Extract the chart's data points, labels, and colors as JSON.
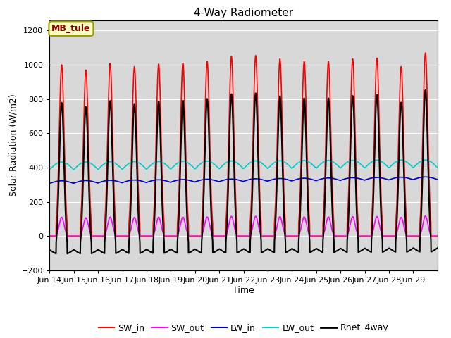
{
  "title": "4-Way Radiometer",
  "xlabel": "Time",
  "ylabel": "Solar Radiation (W/m2)",
  "ylim": [
    -200,
    1260
  ],
  "yticks": [
    -200,
    0,
    200,
    400,
    600,
    800,
    1000,
    1200
  ],
  "station_label": "MB_tule",
  "colors": {
    "SW_in": "#ff0000",
    "SW_out": "#ff00ff",
    "LW_in": "#0000cc",
    "LW_out": "#00cccc",
    "Rnet_4way": "#000000"
  },
  "line_widths": {
    "SW_in": 1.2,
    "SW_out": 1.2,
    "LW_in": 1.2,
    "LW_out": 1.2,
    "Rnet_4way": 1.5
  },
  "n_days": 16,
  "background_color": "#d8d8d8",
  "xtick_labels": [
    "Jun 14",
    "Jun 15",
    "Jun 16",
    "Jun 17",
    "Jun 18",
    "Jun 19",
    "Jun 20",
    "Jun 21",
    "Jun 22",
    "Jun 23",
    "Jun 24",
    "Jun 25",
    "Jun 26",
    "Jun 27",
    "Jun 28",
    "Jun 29"
  ],
  "legend_labels": [
    "SW_in",
    "SW_out",
    "LW_in",
    "LW_out",
    "Rnet_4way"
  ],
  "SW_in_peaks": [
    1000,
    970,
    1010,
    990,
    1005,
    1010,
    1020,
    1050,
    1055,
    1035,
    1020,
    1020,
    1035,
    1040,
    990,
    1070
  ],
  "LW_in_base": 308,
  "LW_out_base": 388,
  "SW_out_ratio": 0.11,
  "night_rnet": -90
}
